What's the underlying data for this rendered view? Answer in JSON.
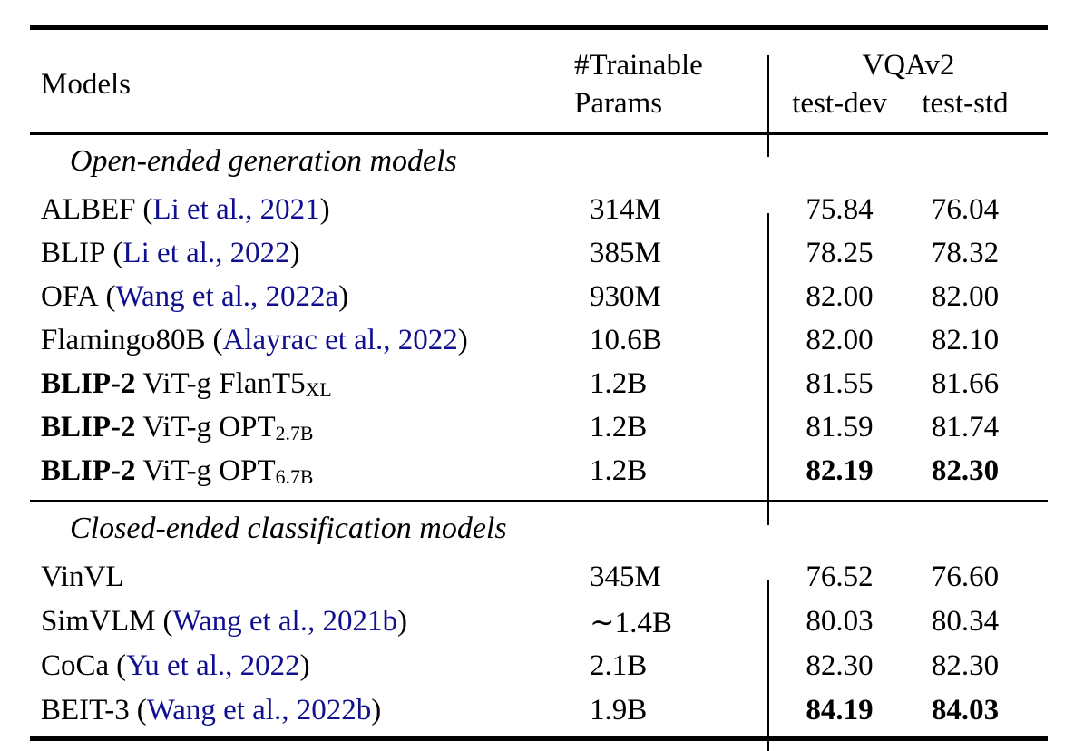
{
  "table": {
    "header": {
      "models": "Models",
      "trainable_line1": "#Trainable",
      "trainable_line2": "Params",
      "vqa_group": "VQAv2",
      "test_dev": "test-dev",
      "test_std": "test-std"
    },
    "punct": {
      "open_paren": "(",
      "close_paren": ")"
    },
    "sections": [
      {
        "title": "Open-ended generation models",
        "rows": [
          {
            "name": "ALBEF",
            "cite": "Li et al., 2021",
            "params": "314M",
            "test_dev": "75.84",
            "test_std": "76.04"
          },
          {
            "name": "BLIP",
            "cite": "Li et al., 2022",
            "params": "385M",
            "test_dev": "78.25",
            "test_std": "78.32"
          },
          {
            "name": "OFA",
            "cite": "Wang et al., 2022a",
            "params": "930M",
            "test_dev": "82.00",
            "test_std": "82.00"
          },
          {
            "name": "Flamingo80B",
            "cite": "Alayrac et al., 2022",
            "params": "10.6B",
            "test_dev": "82.00",
            "test_std": "82.10"
          },
          {
            "name_bold": "BLIP-2",
            "name": "ViT-g FlanT5",
            "sub": "XL",
            "params": "1.2B",
            "test_dev": "81.55",
            "test_std": "81.66"
          },
          {
            "name_bold": "BLIP-2",
            "name": "ViT-g OPT",
            "sub": "2.7B",
            "params": "1.2B",
            "test_dev": "81.59",
            "test_std": "81.74"
          },
          {
            "name_bold": "BLIP-2",
            "name": "ViT-g OPT",
            "sub": "6.7B",
            "params": "1.2B",
            "test_dev": "82.19",
            "test_std": "82.30",
            "scores_bold": true
          }
        ]
      },
      {
        "title": "Closed-ended classification models",
        "rows": [
          {
            "name": "VinVL",
            "params": "345M",
            "test_dev": "76.52",
            "test_std": "76.60"
          },
          {
            "name": "SimVLM",
            "cite": "Wang et al., 2021b",
            "params": "∼1.4B",
            "test_dev": "80.03",
            "test_std": "80.34"
          },
          {
            "name": "CoCa",
            "cite": "Yu et al., 2022",
            "params": "2.1B",
            "test_dev": "82.30",
            "test_std": "82.30"
          },
          {
            "name": "BEIT-3",
            "cite": "Wang et al., 2022b",
            "params": "1.9B",
            "test_dev": "84.19",
            "test_std": "84.03",
            "scores_bold": true
          }
        ]
      }
    ]
  },
  "colors": {
    "text": "#000000",
    "citation_link": "#0F0F8F",
    "rule": "#000000"
  }
}
